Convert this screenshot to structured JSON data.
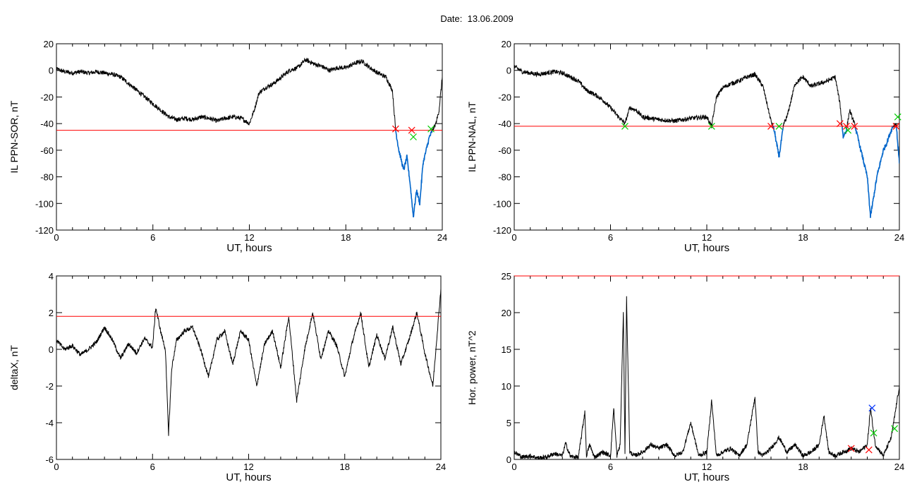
{
  "page": {
    "title": "Date:  13.06.2009"
  },
  "colors": {
    "trace": "#000000",
    "threshold": "#ff0000",
    "highlight": "#0066cc",
    "marker_red": "#ff0000",
    "marker_green": "#00cc00",
    "marker_blue": "#0033ff"
  },
  "chart_data": [
    {
      "type": "line",
      "xlabel": "UT, hours",
      "ylabel": "IL PPN-SOR, nT",
      "xlim": [
        0,
        24
      ],
      "ylim": [
        -120,
        20
      ],
      "xticks": [
        0,
        6,
        12,
        18,
        24
      ],
      "yticks": [
        20,
        0,
        -20,
        -40,
        -60,
        -80,
        -100,
        -120
      ],
      "threshold": -45,
      "highlight_below_threshold": true,
      "series": [
        {
          "x": [
            0,
            0.5,
            1,
            1.5,
            2,
            2.5,
            3,
            3.5,
            4,
            4.5,
            5,
            5.5,
            6,
            6.5,
            7,
            7.5,
            8,
            8.5,
            9,
            9.5,
            10,
            10.5,
            11,
            11.5,
            12,
            12.3,
            12.6,
            13,
            13.5,
            14,
            14.5,
            15,
            15.5,
            16,
            16.5,
            17,
            17.5,
            18,
            18.5,
            19,
            19.5,
            20,
            20.5,
            20.9,
            21.1,
            21.3,
            21.6,
            21.8,
            22,
            22.2,
            22.4,
            22.6,
            22.8,
            23,
            23.2,
            23.4,
            23.6,
            23.8,
            24
          ],
          "y": [
            1,
            -1,
            -2,
            -1,
            -2,
            -1,
            -2,
            -3,
            -5,
            -10,
            -15,
            -20,
            -25,
            -30,
            -35,
            -37,
            -36,
            -37,
            -35,
            -36,
            -38,
            -36,
            -35,
            -36,
            -40,
            -30,
            -17,
            -13,
            -10,
            -5,
            0,
            2,
            8,
            5,
            3,
            0,
            2,
            2,
            5,
            7,
            2,
            -2,
            -5,
            -15,
            -45,
            -60,
            -75,
            -65,
            -85,
            -110,
            -90,
            -100,
            -70,
            -60,
            -50,
            -45,
            -40,
            -30,
            -5
          ]
        }
      ],
      "markers": [
        {
          "x": 21.1,
          "y": -44,
          "color": "red"
        },
        {
          "x": 22.1,
          "y": -45,
          "color": "red"
        },
        {
          "x": 22.2,
          "y": -50,
          "color": "green"
        },
        {
          "x": 23.3,
          "y": -44,
          "color": "green"
        }
      ]
    },
    {
      "type": "line",
      "xlabel": "UT, hours",
      "ylabel": "IL PPN-NAL, nT",
      "xlim": [
        0,
        24
      ],
      "ylim": [
        -120,
        20
      ],
      "xticks": [
        0,
        6,
        12,
        18,
        24
      ],
      "yticks": [
        20,
        0,
        -20,
        -40,
        -60,
        -80,
        -100,
        -120
      ],
      "threshold": -42,
      "highlight_below_threshold": true,
      "series": [
        {
          "x": [
            0,
            0.5,
            1,
            1.5,
            2,
            2.5,
            3,
            3.5,
            4,
            4.5,
            5,
            5.5,
            6,
            6.5,
            6.9,
            7.2,
            7.6,
            8,
            9,
            10,
            11,
            12,
            12.3,
            12.6,
            13,
            13.5,
            14,
            14.5,
            15,
            15.5,
            16,
            16.2,
            16.5,
            16.8,
            17,
            17.5,
            18,
            18.5,
            19,
            19.5,
            20,
            20.3,
            20.5,
            20.7,
            20.9,
            21.2,
            21.5,
            21.8,
            22,
            22.2,
            22.4,
            22.6,
            22.8,
            23,
            23.2,
            23.4,
            23.6,
            23.8,
            24
          ],
          "y": [
            3,
            -1,
            -2,
            -3,
            -2,
            -1,
            -2,
            -5,
            -8,
            -15,
            -18,
            -22,
            -28,
            -35,
            -40,
            -28,
            -30,
            -35,
            -37,
            -38,
            -36,
            -35,
            -42,
            -20,
            -13,
            -10,
            -8,
            -5,
            -3,
            -12,
            -38,
            -45,
            -65,
            -40,
            -35,
            -10,
            -5,
            -12,
            -10,
            -8,
            -5,
            -25,
            -50,
            -45,
            -30,
            -40,
            -55,
            -70,
            -80,
            -110,
            -95,
            -80,
            -70,
            -60,
            -55,
            -48,
            -42,
            -40,
            -70
          ]
        }
      ],
      "markers": [
        {
          "x": 6.9,
          "y": -42,
          "color": "green"
        },
        {
          "x": 12.3,
          "y": -42,
          "color": "green"
        },
        {
          "x": 16.0,
          "y": -42,
          "color": "red"
        },
        {
          "x": 16.5,
          "y": -42,
          "color": "green"
        },
        {
          "x": 20.3,
          "y": -40,
          "color": "red"
        },
        {
          "x": 20.7,
          "y": -42,
          "color": "red"
        },
        {
          "x": 20.8,
          "y": -45,
          "color": "green"
        },
        {
          "x": 21.2,
          "y": -42,
          "color": "red"
        },
        {
          "x": 23.8,
          "y": -42,
          "color": "red"
        },
        {
          "x": 23.9,
          "y": -35,
          "color": "green"
        }
      ]
    },
    {
      "type": "line",
      "xlabel": "UT, hours",
      "ylabel": "deltaX, nT",
      "xlim": [
        0,
        24
      ],
      "ylim": [
        -6,
        4
      ],
      "xticks": [
        0,
        6,
        12,
        18,
        24
      ],
      "yticks": [
        4,
        2,
        0,
        -2,
        -4,
        -6
      ],
      "threshold": 1.8,
      "highlight_below_threshold": false,
      "series": [
        {
          "x": [
            0,
            0.5,
            1,
            1.5,
            2,
            2.5,
            3,
            3.5,
            4,
            4.5,
            5,
            5.5,
            6,
            6.2,
            6.5,
            6.8,
            7,
            7.2,
            7.5,
            8,
            8.5,
            9,
            9.5,
            10,
            10.5,
            11,
            11.5,
            12,
            12.5,
            13,
            13.5,
            14,
            14.5,
            15,
            15.5,
            16,
            16.5,
            17,
            17.5,
            18,
            18.5,
            19,
            19.5,
            20,
            20.5,
            21,
            21.5,
            22,
            22.5,
            23,
            23.5,
            24
          ],
          "y": [
            0.5,
            0,
            0.2,
            -0.3,
            0,
            0.4,
            1.2,
            0.5,
            -0.5,
            0.3,
            -0.2,
            0.6,
            0.1,
            2.3,
            1,
            0,
            -4.6,
            -1,
            0.5,
            1,
            1.2,
            0,
            -1.5,
            0.5,
            1,
            -0.8,
            1,
            0.5,
            -2,
            0.3,
            1,
            -1,
            1.8,
            -2.8,
            0,
            2,
            -0.5,
            1,
            0.2,
            -1.5,
            0.5,
            2,
            -1,
            0.8,
            -0.5,
            1.2,
            -0.8,
            0.5,
            2,
            -0.2,
            -2,
            3.3
          ]
        }
      ],
      "markers": []
    },
    {
      "type": "line",
      "xlabel": "UT, hours",
      "ylabel": "Hor. power, nT^2",
      "xlim": [
        0,
        24
      ],
      "ylim": [
        0,
        25
      ],
      "xticks": [
        0,
        6,
        12,
        18,
        24
      ],
      "yticks": [
        25,
        20,
        15,
        10,
        5,
        0
      ],
      "threshold": 25,
      "highlight_below_threshold": false,
      "series": [
        {
          "x": [
            0,
            0.5,
            1,
            1.5,
            2,
            2.5,
            3,
            3.2,
            3.5,
            4,
            4.4,
            4.5,
            4.7,
            5,
            5.5,
            6,
            6.2,
            6.4,
            6.6,
            6.8,
            6.9,
            7.0,
            7.2,
            7.5,
            8,
            8.5,
            9,
            9.5,
            10,
            10.5,
            11,
            11.5,
            12,
            12.3,
            12.6,
            13,
            13.5,
            14,
            14.5,
            15,
            15.2,
            15.5,
            16,
            16.5,
            17,
            17.5,
            18,
            18.5,
            19,
            19.3,
            19.6,
            20,
            20.5,
            21,
            21.5,
            22,
            22.2,
            22.5,
            23,
            23.5,
            24
          ],
          "y": [
            1,
            0.3,
            0.5,
            0.2,
            0.3,
            0.8,
            0.5,
            2.2,
            0.4,
            0.3,
            6.5,
            0.5,
            2,
            0.3,
            1,
            0.5,
            7,
            0.5,
            2,
            20,
            1,
            22,
            1,
            0.5,
            1,
            2,
            1.5,
            2,
            0.5,
            1,
            5,
            0.5,
            1,
            8,
            0.5,
            1,
            1.5,
            0.5,
            2,
            8.5,
            1,
            0.5,
            1.5,
            3,
            1,
            2,
            0.5,
            1,
            2,
            6,
            1,
            0.5,
            1,
            1.5,
            1,
            2,
            7,
            2,
            0.5,
            3,
            10
          ]
        }
      ],
      "markers": [
        {
          "x": 21.0,
          "y": 1.5,
          "color": "red"
        },
        {
          "x": 22.1,
          "y": 1.3,
          "color": "red"
        },
        {
          "x": 22.3,
          "y": 7.0,
          "color": "blue"
        },
        {
          "x": 22.4,
          "y": 3.6,
          "color": "green"
        },
        {
          "x": 23.7,
          "y": 4.2,
          "color": "green"
        }
      ]
    }
  ]
}
